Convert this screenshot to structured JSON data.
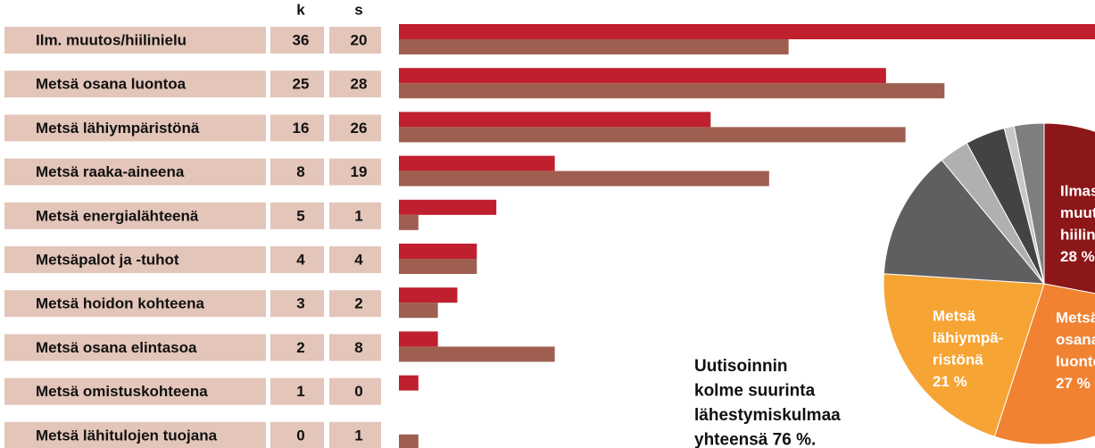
{
  "chart_data": [
    {
      "type": "bar",
      "orientation": "horizontal",
      "categories": [
        "Ilm. muutos/hiilinielu",
        "Metsä osana luontoa",
        "Metsä lähiympäristönä",
        "Metsä raaka-aineena",
        "Metsä energialähteenä",
        "Metsäpalot ja -tuhot",
        "Metsä hoidon kohteena",
        "Metsä osana elintasoa",
        "Metsä omistuskohteena",
        "Metsä lähitulojen tuojana"
      ],
      "series": [
        {
          "name": "k",
          "color": "#c01f2e",
          "values": [
            36,
            25,
            16,
            8,
            5,
            4,
            3,
            2,
            1,
            0
          ]
        },
        {
          "name": "s",
          "color": "#9f5f50",
          "values": [
            20,
            28,
            26,
            19,
            1,
            4,
            2,
            8,
            0,
            1
          ]
        }
      ],
      "xlim": [
        0,
        36
      ]
    },
    {
      "type": "pie",
      "categories": [
        [
          "Ilmasto-",
          "muutos/",
          "hiilinielu"
        ],
        [
          "Metsä",
          "osana",
          "luontoa"
        ],
        [
          "Metsä",
          "lähiympä-",
          "ristönä"
        ],
        null,
        null,
        null,
        null,
        null
      ],
      "values": [
        28,
        27,
        21,
        13,
        3,
        4,
        1,
        3
      ],
      "value_labels": [
        "28 %",
        "27 %",
        "21 %",
        null,
        null,
        null,
        null,
        null
      ],
      "colors": [
        "#8c1719",
        "#f08232",
        "#f6a434",
        "#5f5f61",
        "#b0b0b2",
        "#434345",
        "#c8c8ca",
        "#7e7e80"
      ],
      "annotation": [
        "Uutisoinnin",
        "kolme suurinta",
        "lähestymiskulmaa",
        "yhteensä 76 %."
      ]
    }
  ]
}
